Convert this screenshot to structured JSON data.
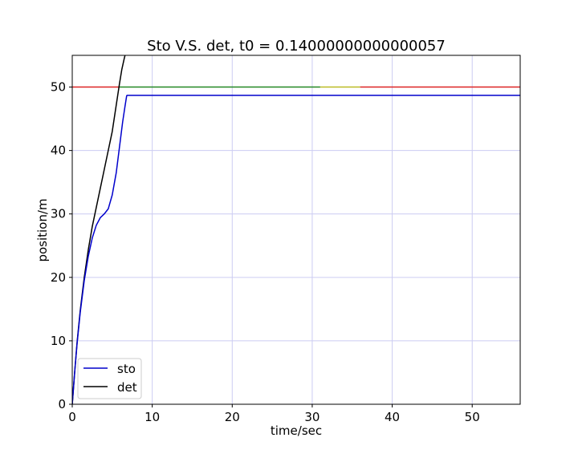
{
  "chart_data": {
    "type": "line",
    "title": "Sto V.S. det, t0 = 0.14000000000000057",
    "xlabel": "time/sec",
    "ylabel": "position/m",
    "xlim": [
      0,
      56
    ],
    "ylim": [
      0,
      55
    ],
    "xticks": [
      0,
      10,
      20,
      30,
      40,
      50
    ],
    "yticks": [
      0,
      10,
      20,
      30,
      40,
      50
    ],
    "grid": true,
    "legend_position": "lower-left",
    "series": [
      {
        "name": "sto",
        "color": "#0000cc",
        "x": [
          0,
          0.3,
          0.6,
          1,
          1.5,
          2,
          2.5,
          3,
          3.5,
          4,
          4.5,
          5,
          5.5,
          6,
          6.3,
          6.6,
          6.8,
          6.85,
          10,
          20,
          30,
          40,
          50,
          56
        ],
        "y": [
          0,
          5,
          9.5,
          14.5,
          19.5,
          23.3,
          26.2,
          28.2,
          29.4,
          30,
          30.8,
          33,
          36.5,
          41.5,
          44.5,
          47,
          48.6,
          48.7,
          48.7,
          48.7,
          48.7,
          48.7,
          48.7,
          48.7
        ]
      },
      {
        "name": "det",
        "color": "#000000",
        "x": [
          0,
          0.3,
          0.6,
          1,
          1.5,
          2,
          2.5,
          3,
          3.5,
          4,
          4.5,
          5,
          5.3,
          5.6,
          5.9,
          6.2,
          6.5,
          6.6
        ],
        "y": [
          0,
          5,
          9.7,
          14.8,
          20,
          24.3,
          28,
          31,
          34,
          37,
          40,
          43,
          45.5,
          48,
          50.5,
          52.8,
          54.5,
          55
        ]
      },
      {
        "color": "#dd2222",
        "x": [
          0,
          5.9
        ],
        "y": [
          50,
          50
        ]
      },
      {
        "color": "#228822",
        "x": [
          5.9,
          31
        ],
        "y": [
          50,
          50
        ]
      },
      {
        "color": "#bbbb22",
        "x": [
          31,
          36
        ],
        "y": [
          50,
          50
        ]
      },
      {
        "color": "#dd2222",
        "x": [
          36,
          56
        ],
        "y": [
          50,
          50
        ]
      }
    ]
  }
}
